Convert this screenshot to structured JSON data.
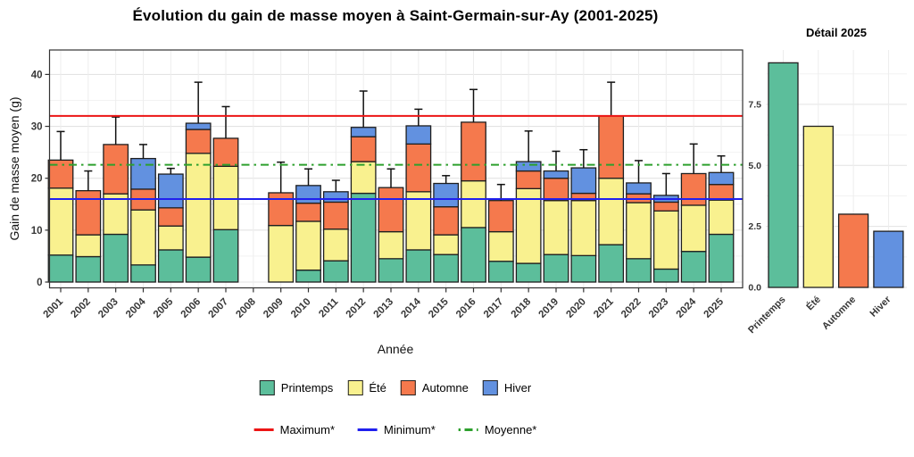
{
  "title": "Évolution du gain de masse moyen à Saint-Germain-sur-Ay (2001-2025)",
  "legend": {
    "seasons": [
      {
        "label": "Printemps",
        "color": "#5CBE9B"
      },
      {
        "label": "Été",
        "color": "#F9F18F"
      },
      {
        "label": "Automne",
        "color": "#F5794D"
      },
      {
        "label": "Hiver",
        "color": "#6291E0"
      }
    ],
    "lines": [
      {
        "label": "Maximum*",
        "color": "#EC1515",
        "style": "solid"
      },
      {
        "label": "Minimum*",
        "color": "#2020EE",
        "style": "solid"
      },
      {
        "label": "Moyenne*",
        "color": "#2DA02D",
        "style": "dashdot"
      }
    ]
  },
  "chart_data": [
    {
      "id": "main",
      "type": "bar",
      "subtype": "stacked_bars_with_error_bars",
      "title": "Évolution du gain de masse moyen à Saint-Germain-sur-Ay (2001-2025)",
      "xlabel": "Année",
      "ylabel": "Gain de masse moyen (g)",
      "ylim": [
        0,
        44.5
      ],
      "yticks": [
        0,
        10,
        20,
        30,
        40
      ],
      "grid": true,
      "legend_position": "bottom",
      "categories": [
        2001,
        2002,
        2003,
        2004,
        2005,
        2006,
        2007,
        2008,
        2009,
        2010,
        2011,
        2012,
        2013,
        2014,
        2015,
        2016,
        2017,
        2018,
        2019,
        2020,
        2021,
        2022,
        2023,
        2024,
        2025
      ],
      "missing_years": [
        2008
      ],
      "series": [
        {
          "name": "Printemps",
          "color": "#5CBE9B",
          "values": [
            5.2,
            4.9,
            9.2,
            3.3,
            6.2,
            4.8,
            10.1,
            null,
            0,
            2.3,
            4.1,
            17.1,
            4.5,
            6.2,
            5.3,
            10.5,
            4.0,
            3.6,
            5.3,
            5.1,
            7.2,
            4.5,
            2.5,
            5.9,
            9.2
          ]
        },
        {
          "name": "Été",
          "color": "#F9F18F",
          "values": [
            12.9,
            4.2,
            7.8,
            10.6,
            4.6,
            20.0,
            12.2,
            null,
            10.9,
            9.4,
            6.1,
            6.1,
            5.2,
            11.2,
            3.8,
            9.0,
            5.7,
            14.4,
            10.4,
            10.6,
            12.8,
            10.8,
            11.2,
            8.9,
            6.6
          ]
        },
        {
          "name": "Automne",
          "color": "#F5794D",
          "values": [
            5.4,
            8.5,
            9.5,
            4.0,
            3.5,
            4.6,
            5.4,
            null,
            6.3,
            3.5,
            5.2,
            4.8,
            8.5,
            9.2,
            5.4,
            11.3,
            6.0,
            3.4,
            4.3,
            1.4,
            12.0,
            1.7,
            1.7,
            6.1,
            3.0
          ]
        },
        {
          "name": "Hiver",
          "color": "#6291E0",
          "values": [
            0,
            0,
            0,
            5.9,
            6.5,
            1.2,
            0,
            null,
            0,
            3.4,
            2.0,
            1.8,
            0,
            3.5,
            4.5,
            0,
            0,
            1.8,
            1.4,
            4.9,
            0,
            2.1,
            1.3,
            0,
            2.3
          ]
        }
      ],
      "error_bar_tops": [
        29.0,
        21.4,
        31.8,
        26.5,
        21.9,
        38.5,
        33.8,
        null,
        23.1,
        21.8,
        19.6,
        36.8,
        21.8,
        33.3,
        20.5,
        37.1,
        18.8,
        29.1,
        25.2,
        25.5,
        38.5,
        23.4,
        20.9,
        26.6,
        24.3
      ],
      "reference_lines": [
        {
          "name": "Maximum*",
          "value": 32.0,
          "color": "#EC1515",
          "style": "solid"
        },
        {
          "name": "Minimum*",
          "value": 16.0,
          "color": "#2020EE",
          "style": "solid"
        },
        {
          "name": "Moyenne*",
          "value": 22.6,
          "color": "#2DA02D",
          "style": "dashdot"
        }
      ]
    },
    {
      "id": "detail",
      "type": "bar",
      "title": "Détail 2025",
      "xlabel": "",
      "ylabel": "",
      "ylim": [
        0,
        9.7
      ],
      "yticks": [
        0,
        2.5,
        5.0,
        7.5
      ],
      "grid": true,
      "categories": [
        "Printemps",
        "Été",
        "Automne",
        "Hiver"
      ],
      "values": [
        9.2,
        6.6,
        3.0,
        2.3
      ],
      "colors": [
        "#5CBE9B",
        "#F9F18F",
        "#F5794D",
        "#6291E0"
      ]
    }
  ]
}
